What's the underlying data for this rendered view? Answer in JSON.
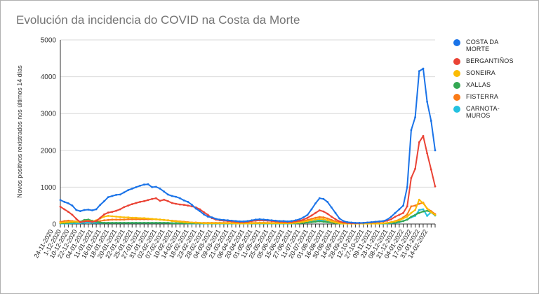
{
  "title": "Evolución da incidencia do COVID na Costa da Morte",
  "chart_data": {
    "type": "line",
    "title": "Evolución da incidencia do COVID na Costa da Morte",
    "xlabel": "",
    "ylabel": "Novos positivos rexistrados nos últimos 14 días",
    "ylim": [
      0,
      5000
    ],
    "yticks": [
      0,
      1000,
      2000,
      3000,
      4000,
      5000
    ],
    "grid": true,
    "legend_position": "right",
    "tick_labels": [
      "24-11-2020",
      "1-12-2020",
      "10-12-2020",
      "22-12-2020",
      "04-01-2021",
      "11-01-2021",
      "16-01-2021",
      "18-01-2021",
      "20-01-2021",
      "22-01-2021",
      "25-01-2021",
      "27-01-2021",
      "31-01-2021",
      "02-02-2021",
      "07-02-2021",
      "10-02-2021",
      "14-02-2021",
      "18-02-2021",
      "23-02-2021",
      "28-02-2021",
      "04-03-2021",
      "09-03-2021",
      "21-03-2021",
      "06-04-2021",
      "20-04-2021",
      "01-05-2021",
      "11-05-2021",
      "25-05-2021",
      "05-06-2021",
      "15-06-2021",
      "27-06-2021",
      "11-07-2021",
      "20-07-2021",
      "01-08-2021",
      "16-08-2021",
      "30-08-2021",
      "14-09-2021",
      "28-09-2021",
      "12-10-2021",
      "27-10-2021",
      "09-11-2021",
      "23-11-2021",
      "08-12-2021",
      "21-12-2021",
      "04-01-2022",
      "17-01-2022",
      "31-01-2022",
      "14-02-2022"
    ],
    "series": [
      {
        "name": "COSTA DA MORTE",
        "color": "#1a73e8",
        "values": [
          650,
          600,
          560,
          500,
          380,
          350,
          380,
          390,
          370,
          400,
          520,
          620,
          730,
          760,
          790,
          800,
          860,
          920,
          960,
          1000,
          1040,
          1070,
          1080,
          1000,
          1010,
          960,
          880,
          800,
          760,
          740,
          700,
          640,
          600,
          520,
          420,
          350,
          260,
          200,
          180,
          140,
          120,
          110,
          100,
          90,
          80,
          70,
          70,
          80,
          100,
          120,
          130,
          120,
          110,
          100,
          90,
          80,
          80,
          70,
          80,
          100,
          130,
          180,
          250,
          400,
          560,
          700,
          680,
          600,
          450,
          300,
          150,
          80,
          50,
          40,
          30,
          30,
          30,
          40,
          50,
          60,
          70,
          80,
          120,
          200,
          300,
          400,
          500,
          1000,
          2550,
          2900,
          4150,
          4220,
          3320,
          2800,
          2000
        ]
      },
      {
        "name": "BERGANTIÑOS",
        "color": "#ea4335",
        "values": [
          470,
          400,
          330,
          250,
          140,
          50,
          70,
          80,
          60,
          80,
          170,
          260,
          310,
          330,
          360,
          400,
          460,
          500,
          540,
          570,
          600,
          620,
          650,
          680,
          700,
          630,
          660,
          620,
          570,
          550,
          530,
          520,
          500,
          480,
          450,
          400,
          320,
          250,
          160,
          120,
          100,
          90,
          80,
          70,
          60,
          50,
          50,
          60,
          80,
          90,
          100,
          95,
          90,
          80,
          70,
          60,
          55,
          50,
          55,
          70,
          90,
          120,
          170,
          230,
          300,
          370,
          340,
          280,
          200,
          130,
          70,
          40,
          30,
          20,
          20,
          20,
          30,
          40,
          40,
          50,
          60,
          70,
          90,
          130,
          200,
          250,
          300,
          480,
          1250,
          1500,
          2220,
          2390,
          1920,
          1480,
          1020
        ]
      },
      {
        "name": "SONEIRA",
        "color": "#fbbc04",
        "values": [
          30,
          40,
          50,
          60,
          60,
          50,
          80,
          90,
          70,
          100,
          150,
          200,
          220,
          210,
          200,
          190,
          180,
          180,
          170,
          170,
          160,
          160,
          150,
          140,
          130,
          120,
          110,
          100,
          80,
          70,
          60,
          50,
          40,
          40,
          30,
          30,
          20,
          20,
          20,
          20,
          20,
          20,
          20,
          20,
          15,
          15,
          15,
          15,
          20,
          20,
          25,
          25,
          20,
          20,
          20,
          20,
          20,
          20,
          20,
          30,
          40,
          60,
          80,
          100,
          120,
          140,
          130,
          100,
          70,
          40,
          20,
          10,
          10,
          10,
          10,
          10,
          10,
          10,
          10,
          10,
          15,
          20,
          30,
          50,
          70,
          100,
          150,
          200,
          300,
          380,
          660,
          560,
          420,
          320,
          250
        ]
      },
      {
        "name": "XALLAS",
        "color": "#34a853",
        "values": [
          20,
          20,
          30,
          40,
          50,
          60,
          110,
          120,
          90,
          60,
          40,
          30,
          30,
          30,
          30,
          30,
          30,
          30,
          30,
          30,
          30,
          30,
          30,
          30,
          30,
          30,
          30,
          30,
          20,
          20,
          20,
          20,
          20,
          20,
          20,
          20,
          15,
          15,
          15,
          15,
          15,
          15,
          15,
          15,
          15,
          15,
          15,
          15,
          15,
          15,
          15,
          15,
          15,
          15,
          15,
          15,
          15,
          15,
          15,
          20,
          20,
          30,
          40,
          50,
          60,
          70,
          60,
          50,
          40,
          20,
          10,
          10,
          10,
          10,
          10,
          10,
          10,
          10,
          10,
          10,
          10,
          10,
          20,
          30,
          40,
          60,
          80,
          120,
          200,
          250,
          300,
          340,
          360,
          320,
          240
        ]
      },
      {
        "name": "FISTERRA",
        "color": "#fa7b17",
        "values": [
          60,
          80,
          90,
          80,
          70,
          60,
          70,
          80,
          60,
          70,
          80,
          100,
          110,
          120,
          120,
          120,
          120,
          130,
          130,
          130,
          130,
          130,
          130,
          130,
          130,
          120,
          110,
          100,
          90,
          80,
          70,
          60,
          50,
          40,
          40,
          30,
          30,
          30,
          30,
          30,
          30,
          30,
          30,
          30,
          30,
          30,
          30,
          30,
          30,
          30,
          35,
          35,
          30,
          30,
          30,
          30,
          30,
          30,
          30,
          40,
          60,
          80,
          110,
          140,
          170,
          190,
          180,
          150,
          110,
          70,
          40,
          20,
          10,
          10,
          10,
          10,
          10,
          10,
          10,
          10,
          15,
          20,
          30,
          50,
          80,
          120,
          180,
          260,
          480,
          500,
          550,
          580,
          420,
          350,
          270
        ]
      },
      {
        "name": "CARNOTA-MUROS",
        "color": "#24c1e0",
        "values": [
          10,
          10,
          15,
          20,
          20,
          20,
          30,
          40,
          30,
          30,
          30,
          30,
          30,
          30,
          30,
          30,
          30,
          30,
          30,
          30,
          30,
          30,
          30,
          30,
          30,
          30,
          30,
          30,
          20,
          20,
          20,
          20,
          15,
          15,
          15,
          15,
          10,
          10,
          10,
          10,
          10,
          10,
          10,
          10,
          10,
          10,
          10,
          10,
          10,
          10,
          10,
          10,
          10,
          10,
          10,
          10,
          10,
          10,
          10,
          15,
          20,
          30,
          50,
          70,
          90,
          100,
          90,
          70,
          50,
          30,
          15,
          10,
          10,
          10,
          10,
          10,
          10,
          10,
          10,
          10,
          10,
          10,
          15,
          20,
          30,
          50,
          80,
          120,
          180,
          220,
          380,
          400,
          220,
          320,
          230
        ]
      }
    ]
  },
  "legend": {
    "items": [
      {
        "label": "COSTA DA MORTE",
        "color": "#1a73e8"
      },
      {
        "label": "BERGANTIÑOS",
        "color": "#ea4335"
      },
      {
        "label": "SONEIRA",
        "color": "#fbbc04"
      },
      {
        "label": "XALLAS",
        "color": "#34a853"
      },
      {
        "label": "FISTERRA",
        "color": "#fa7b17"
      },
      {
        "label": "CARNOTA-MUROS",
        "color": "#24c1e0"
      }
    ]
  }
}
